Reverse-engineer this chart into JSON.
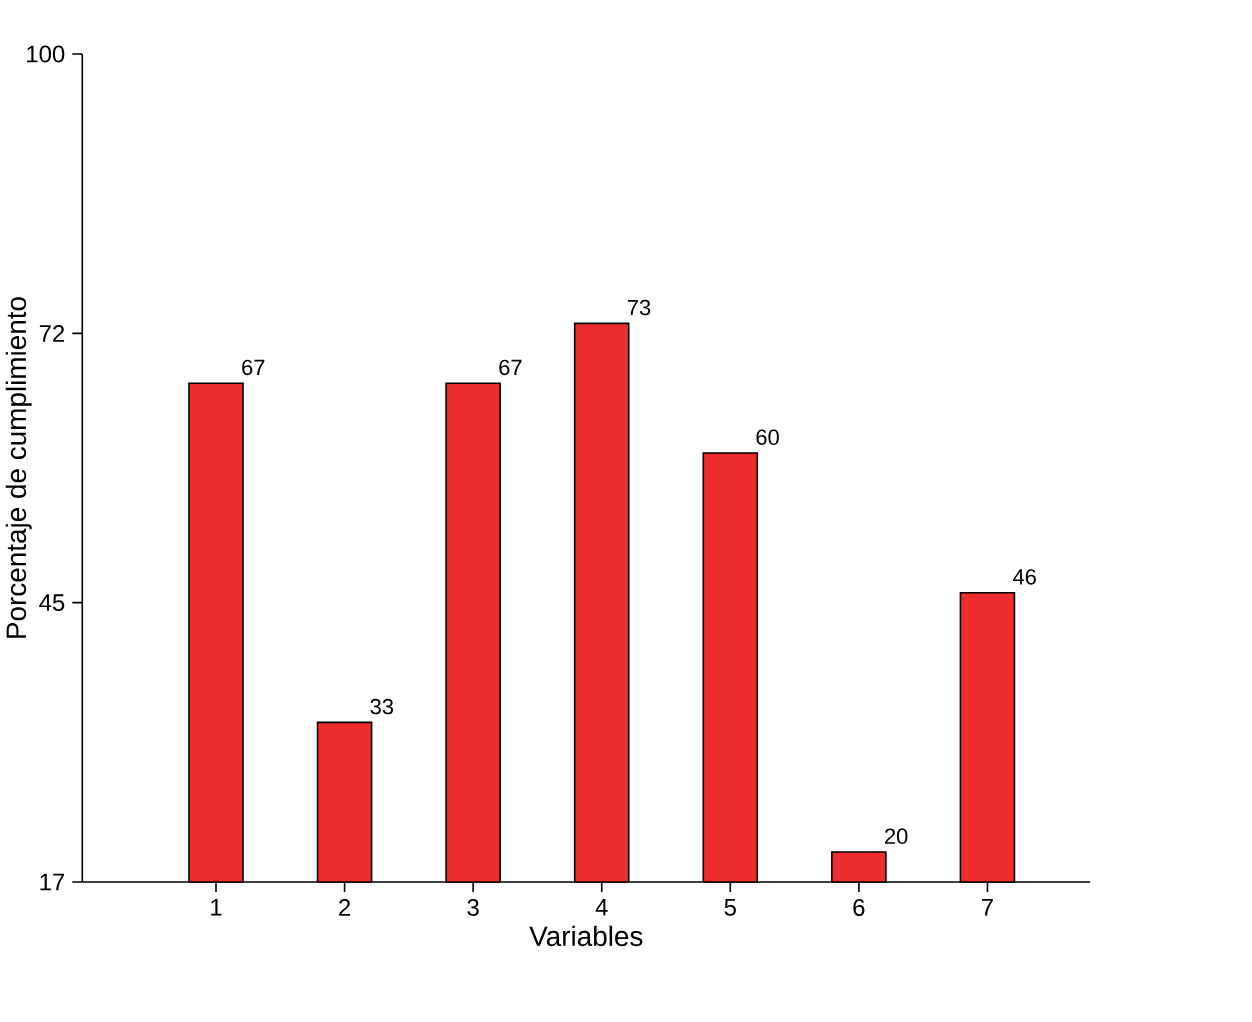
{
  "chart_data": {
    "type": "bar",
    "xlabel": "Variables",
    "ylabel": "Porcentaje de cumplimiento",
    "categories": [
      "1",
      "2",
      "3",
      "4",
      "5",
      "6",
      "7"
    ],
    "values": [
      67,
      33,
      67,
      73,
      60,
      20,
      46
    ],
    "color": "#ee2e2e",
    "ylim": [
      17,
      100
    ],
    "yticks": [
      17,
      45,
      72,
      100
    ],
    "data_labels": true
  }
}
